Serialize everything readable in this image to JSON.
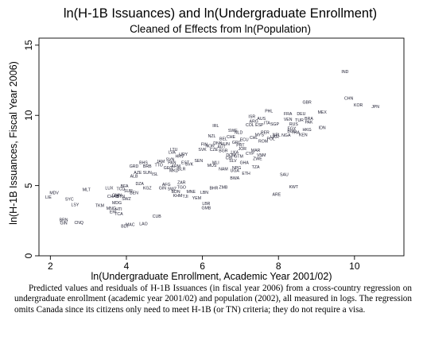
{
  "chart_data": {
    "type": "scatter",
    "title": "ln(H-1B Issuances) and ln(Undergraduate Enrollment)",
    "subtitle": "Cleaned of Effects from ln(Population)",
    "xlabel": "ln(Undergraduate Enrollment, Academic Year 2001/02)",
    "ylabel": "ln(H-1B Issuances, Fiscal Year 2006)",
    "xlim": [
      1.7,
      11.3
    ],
    "ylim": [
      0,
      15.5
    ],
    "xticks": [
      "2",
      "4",
      "6",
      "8",
      "10"
    ],
    "yticks": [
      "0",
      "5",
      "10",
      "15"
    ],
    "grid": false,
    "points": [
      {
        "label": "IND",
        "x": 9.75,
        "y": 13.1
      },
      {
        "label": "CHN",
        "x": 9.85,
        "y": 11.2
      },
      {
        "label": "KOR",
        "x": 10.1,
        "y": 10.7
      },
      {
        "label": "JPN",
        "x": 10.55,
        "y": 10.6
      },
      {
        "label": "GBR",
        "x": 8.75,
        "y": 10.9
      },
      {
        "label": "PHL",
        "x": 7.75,
        "y": 10.3
      },
      {
        "label": "FRA",
        "x": 8.25,
        "y": 10.1
      },
      {
        "label": "DEU",
        "x": 8.6,
        "y": 10.1
      },
      {
        "label": "MEX",
        "x": 9.15,
        "y": 10.2
      },
      {
        "label": "VEN",
        "x": 8.25,
        "y": 9.7
      },
      {
        "label": "TUR",
        "x": 8.55,
        "y": 9.65
      },
      {
        "label": "BRA",
        "x": 8.8,
        "y": 9.75
      },
      {
        "label": "RUS",
        "x": 8.4,
        "y": 9.35
      },
      {
        "label": "PAK",
        "x": 8.8,
        "y": 9.5
      },
      {
        "label": "IDN",
        "x": 9.15,
        "y": 9.1
      },
      {
        "label": "IRL",
        "x": 6.35,
        "y": 9.25
      },
      {
        "label": "ITA",
        "x": 7.7,
        "y": 9.45
      },
      {
        "label": "ARG",
        "x": 7.35,
        "y": 9.55
      },
      {
        "label": "AUS",
        "x": 7.55,
        "y": 9.75
      },
      {
        "label": "ISR",
        "x": 7.3,
        "y": 9.9
      },
      {
        "label": "ESP",
        "x": 7.5,
        "y": 9.3
      },
      {
        "label": "SGP",
        "x": 7.9,
        "y": 9.35
      },
      {
        "label": "EGY",
        "x": 8.35,
        "y": 9.05
      },
      {
        "label": "BGD",
        "x": 8.35,
        "y": 8.85
      },
      {
        "label": "THA",
        "x": 8.45,
        "y": 8.75
      },
      {
        "label": "HKG",
        "x": 8.75,
        "y": 8.95
      },
      {
        "label": "KEN",
        "x": 8.65,
        "y": 8.6
      },
      {
        "label": "NGA",
        "x": 8.2,
        "y": 8.55
      },
      {
        "label": "NPL",
        "x": 7.95,
        "y": 8.6
      },
      {
        "label": "COL",
        "x": 7.25,
        "y": 9.3
      },
      {
        "label": "NZL",
        "x": 6.25,
        "y": 8.5
      },
      {
        "label": "SWE",
        "x": 6.8,
        "y": 8.9
      },
      {
        "label": "NLD",
        "x": 6.95,
        "y": 8.75
      },
      {
        "label": "CHE",
        "x": 6.75,
        "y": 8.45
      },
      {
        "label": "BEL",
        "x": 6.55,
        "y": 8.3
      },
      {
        "label": "MYS",
        "x": 7.5,
        "y": 8.6
      },
      {
        "label": "PER",
        "x": 7.65,
        "y": 8.75
      },
      {
        "label": "POL",
        "x": 7.8,
        "y": 8.3
      },
      {
        "label": "UKR",
        "x": 7.9,
        "y": 8.45
      },
      {
        "label": "ROM",
        "x": 7.6,
        "y": 8.15
      },
      {
        "label": "CHL",
        "x": 7.35,
        "y": 8.4
      },
      {
        "label": "ECU",
        "x": 7.1,
        "y": 8.25
      },
      {
        "label": "GRC",
        "x": 6.9,
        "y": 8.05
      },
      {
        "label": "PRT",
        "x": 7.0,
        "y": 7.85
      },
      {
        "label": "HUN",
        "x": 6.6,
        "y": 7.95
      },
      {
        "label": "DNK",
        "x": 6.4,
        "y": 8.0
      },
      {
        "label": "AUT",
        "x": 6.5,
        "y": 7.75
      },
      {
        "label": "NOR",
        "x": 6.2,
        "y": 7.8
      },
      {
        "label": "FIN",
        "x": 6.05,
        "y": 7.9
      },
      {
        "label": "CZE",
        "x": 6.3,
        "y": 7.55
      },
      {
        "label": "BGR",
        "x": 6.55,
        "y": 7.45
      },
      {
        "label": "SVK",
        "x": 6.0,
        "y": 7.55
      },
      {
        "label": "LKA",
        "x": 6.85,
        "y": 7.35
      },
      {
        "label": "MAR",
        "x": 7.4,
        "y": 7.5
      },
      {
        "label": "JOR",
        "x": 7.05,
        "y": 7.6
      },
      {
        "label": "DOM",
        "x": 6.75,
        "y": 7.15
      },
      {
        "label": "GTM",
        "x": 6.95,
        "y": 7.05
      },
      {
        "label": "CRI",
        "x": 6.7,
        "y": 6.95
      },
      {
        "label": "SLV",
        "x": 6.8,
        "y": 6.75
      },
      {
        "label": "VNM",
        "x": 7.55,
        "y": 7.15
      },
      {
        "label": "ZWE",
        "x": 7.45,
        "y": 6.9
      },
      {
        "label": "CYP",
        "x": 7.25,
        "y": 7.25
      },
      {
        "label": "TZA",
        "x": 7.4,
        "y": 6.3
      },
      {
        "label": "GHA",
        "x": 7.1,
        "y": 6.6
      },
      {
        "label": "NPG",
        "x": 6.9,
        "y": 6.25
      },
      {
        "label": "UGA",
        "x": 6.85,
        "y": 6.05
      },
      {
        "label": "ETH",
        "x": 7.15,
        "y": 5.85
      },
      {
        "label": "BWA",
        "x": 6.85,
        "y": 5.5
      },
      {
        "label": "SAU",
        "x": 8.15,
        "y": 5.75
      },
      {
        "label": "KWT",
        "x": 8.4,
        "y": 4.9
      },
      {
        "label": "ARE",
        "x": 7.95,
        "y": 4.35
      },
      {
        "label": "LTU",
        "x": 5.25,
        "y": 7.55
      },
      {
        "label": "LVA",
        "x": 5.2,
        "y": 7.35
      },
      {
        "label": "EST",
        "x": 5.55,
        "y": 6.6
      },
      {
        "label": "HRV",
        "x": 5.4,
        "y": 7.05
      },
      {
        "label": "SVN",
        "x": 5.15,
        "y": 6.85
      },
      {
        "label": "URY",
        "x": 5.5,
        "y": 7.2
      },
      {
        "label": "PAN",
        "x": 5.2,
        "y": 6.6
      },
      {
        "label": "BLR",
        "x": 5.45,
        "y": 6.15
      },
      {
        "label": "GEO",
        "x": 5.1,
        "y": 6.25
      },
      {
        "label": "ARM",
        "x": 5.3,
        "y": 6.35
      },
      {
        "label": "MKD",
        "x": 5.25,
        "y": 6.05
      },
      {
        "label": "JAM",
        "x": 4.9,
        "y": 6.7
      },
      {
        "label": "TTO",
        "x": 4.85,
        "y": 6.45
      },
      {
        "label": "BHS",
        "x": 4.45,
        "y": 6.6
      },
      {
        "label": "BRB",
        "x": 4.55,
        "y": 6.35
      },
      {
        "label": "GRD",
        "x": 4.2,
        "y": 6.35
      },
      {
        "label": "AZE",
        "x": 4.3,
        "y": 5.9
      },
      {
        "label": "ALB",
        "x": 4.2,
        "y": 5.65
      },
      {
        "label": "SUN",
        "x": 4.55,
        "y": 5.9
      },
      {
        "label": "ISL",
        "x": 4.75,
        "y": 5.8
      },
      {
        "label": "DZA",
        "x": 4.35,
        "y": 5.1
      },
      {
        "label": "BFA",
        "x": 3.95,
        "y": 4.95
      },
      {
        "label": "KGZ",
        "x": 4.55,
        "y": 4.8
      },
      {
        "label": "GIN",
        "x": 4.95,
        "y": 4.8
      },
      {
        "label": "SWZ",
        "x": 5.2,
        "y": 4.75
      },
      {
        "label": "ZAR",
        "x": 5.45,
        "y": 5.2
      },
      {
        "label": "AFG",
        "x": 5.05,
        "y": 5.05
      },
      {
        "label": "TGO",
        "x": 5.45,
        "y": 4.85
      },
      {
        "label": "BDN",
        "x": 5.3,
        "y": 4.55
      },
      {
        "label": "MNE",
        "x": 5.7,
        "y": 4.55
      },
      {
        "label": "LBN",
        "x": 6.05,
        "y": 4.5
      },
      {
        "label": "BHR",
        "x": 6.3,
        "y": 4.8
      },
      {
        "label": "ZMB",
        "x": 6.55,
        "y": 4.85
      },
      {
        "label": "KHM",
        "x": 5.35,
        "y": 4.25
      },
      {
        "label": "TJI",
        "x": 5.55,
        "y": 4.2
      },
      {
        "label": "YEM",
        "x": 5.85,
        "y": 4.1
      },
      {
        "label": "LBR",
        "x": 6.1,
        "y": 3.7
      },
      {
        "label": "GMB",
        "x": 6.1,
        "y": 3.4
      },
      {
        "label": "LUX",
        "x": 3.55,
        "y": 4.8
      },
      {
        "label": "TCD",
        "x": 3.85,
        "y": 4.75
      },
      {
        "label": "SUR",
        "x": 4.05,
        "y": 4.6
      },
      {
        "label": "BEN",
        "x": 4.2,
        "y": 4.45
      },
      {
        "label": "MLT",
        "x": 2.95,
        "y": 4.7
      },
      {
        "label": "CHAD",
        "x": 3.65,
        "y": 4.2
      },
      {
        "label": "OMN",
        "x": 3.75,
        "y": 4.3
      },
      {
        "label": "BTN",
        "x": 3.85,
        "y": 4.2
      },
      {
        "label": "SWZ",
        "x": 4.0,
        "y": 4.05
      },
      {
        "label": "MDG",
        "x": 3.75,
        "y": 3.75
      },
      {
        "label": "TKM",
        "x": 3.3,
        "y": 3.55
      },
      {
        "label": "SYC",
        "x": 2.5,
        "y": 4.0
      },
      {
        "label": "LSY",
        "x": 2.65,
        "y": 3.6
      },
      {
        "label": "MDV",
        "x": 2.1,
        "y": 4.45
      },
      {
        "label": "LIE",
        "x": 1.95,
        "y": 4.15
      },
      {
        "label": "MNG",
        "x": 3.6,
        "y": 3.35
      },
      {
        "label": "HTI",
        "x": 3.8,
        "y": 3.3
      },
      {
        "label": "ERI",
        "x": 3.65,
        "y": 3.1
      },
      {
        "label": "TCA",
        "x": 3.8,
        "y": 2.95
      },
      {
        "label": "BRN",
        "x": 2.35,
        "y": 2.55
      },
      {
        "label": "GIN",
        "x": 2.35,
        "y": 2.3
      },
      {
        "label": "CNQ",
        "x": 2.75,
        "y": 2.35
      },
      {
        "label": "CUB",
        "x": 4.8,
        "y": 2.8
      },
      {
        "label": "LAO",
        "x": 4.45,
        "y": 2.25
      },
      {
        "label": "BDI",
        "x": 3.95,
        "y": 2.1
      },
      {
        "label": "MAC",
        "x": 4.1,
        "y": 2.2
      },
      {
        "label": "SVK",
        "x": 5.65,
        "y": 6.5
      },
      {
        "label": "MUS",
        "x": 6.25,
        "y": 6.4
      },
      {
        "label": "NAM",
        "x": 6.55,
        "y": 6.15
      },
      {
        "label": "MLI",
        "x": 6.35,
        "y": 6.6
      },
      {
        "label": "SEN",
        "x": 5.9,
        "y": 6.75
      }
    ]
  },
  "caption": "Predicted values and residuals of H-1B Issuances (in fiscal year 2006) from a cross-country regression on undergraduate enrollment (academic year 2001/02) and population (2002), all measured in logs. The regression omits Canada since its citizens only need to meet H-1B (or TN) criteria; they do not require a visa."
}
